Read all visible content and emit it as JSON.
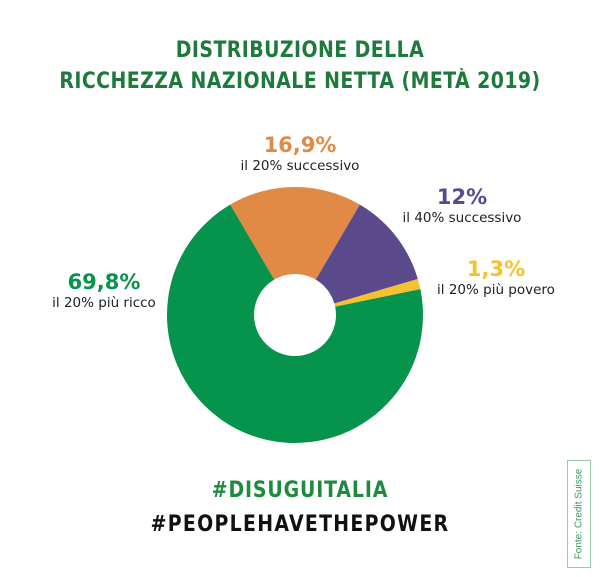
{
  "title": {
    "line1": "DISTRIBUZIONE DELLA",
    "line2": "RICCHEZZA NAZIONALE NETTA (METÀ 2019)"
  },
  "slices": [
    {
      "pct_label": "16,9%",
      "desc": "il 20% successivo",
      "color": "#e08a45"
    },
    {
      "pct_label": "12%",
      "desc": "il 40% successivo",
      "color": "#5a4a8c"
    },
    {
      "pct_label": "1,3%",
      "desc": "il 20% più povero",
      "color": "#f6c12e"
    },
    {
      "pct_label": "69,8%",
      "desc": "il 20% più ricco",
      "color": "#06934b"
    }
  ],
  "hashtags": {
    "primary": "#DISUGUITALIA",
    "secondary": "#PEOPLEHAVETHEPOWER"
  },
  "source": "Fonte: Credit Suisse",
  "chart_data": {
    "type": "pie",
    "subtype": "donut",
    "title": "Distribuzione della ricchezza nazionale netta (metà 2019)",
    "categories": [
      "il 20% più ricco",
      "il 20% successivo",
      "il 40% successivo",
      "il 20% più povero"
    ],
    "values": [
      69.8,
      16.9,
      12.0,
      1.3
    ],
    "unit": "%",
    "colors": [
      "#06934b",
      "#e08a45",
      "#5a4a8c",
      "#f6c12e"
    ],
    "labels": [
      "69,8%",
      "16,9%",
      "12%",
      "1,3%"
    ],
    "legend": "none (direct labels)",
    "source": "Fonte: Credit Suisse"
  }
}
